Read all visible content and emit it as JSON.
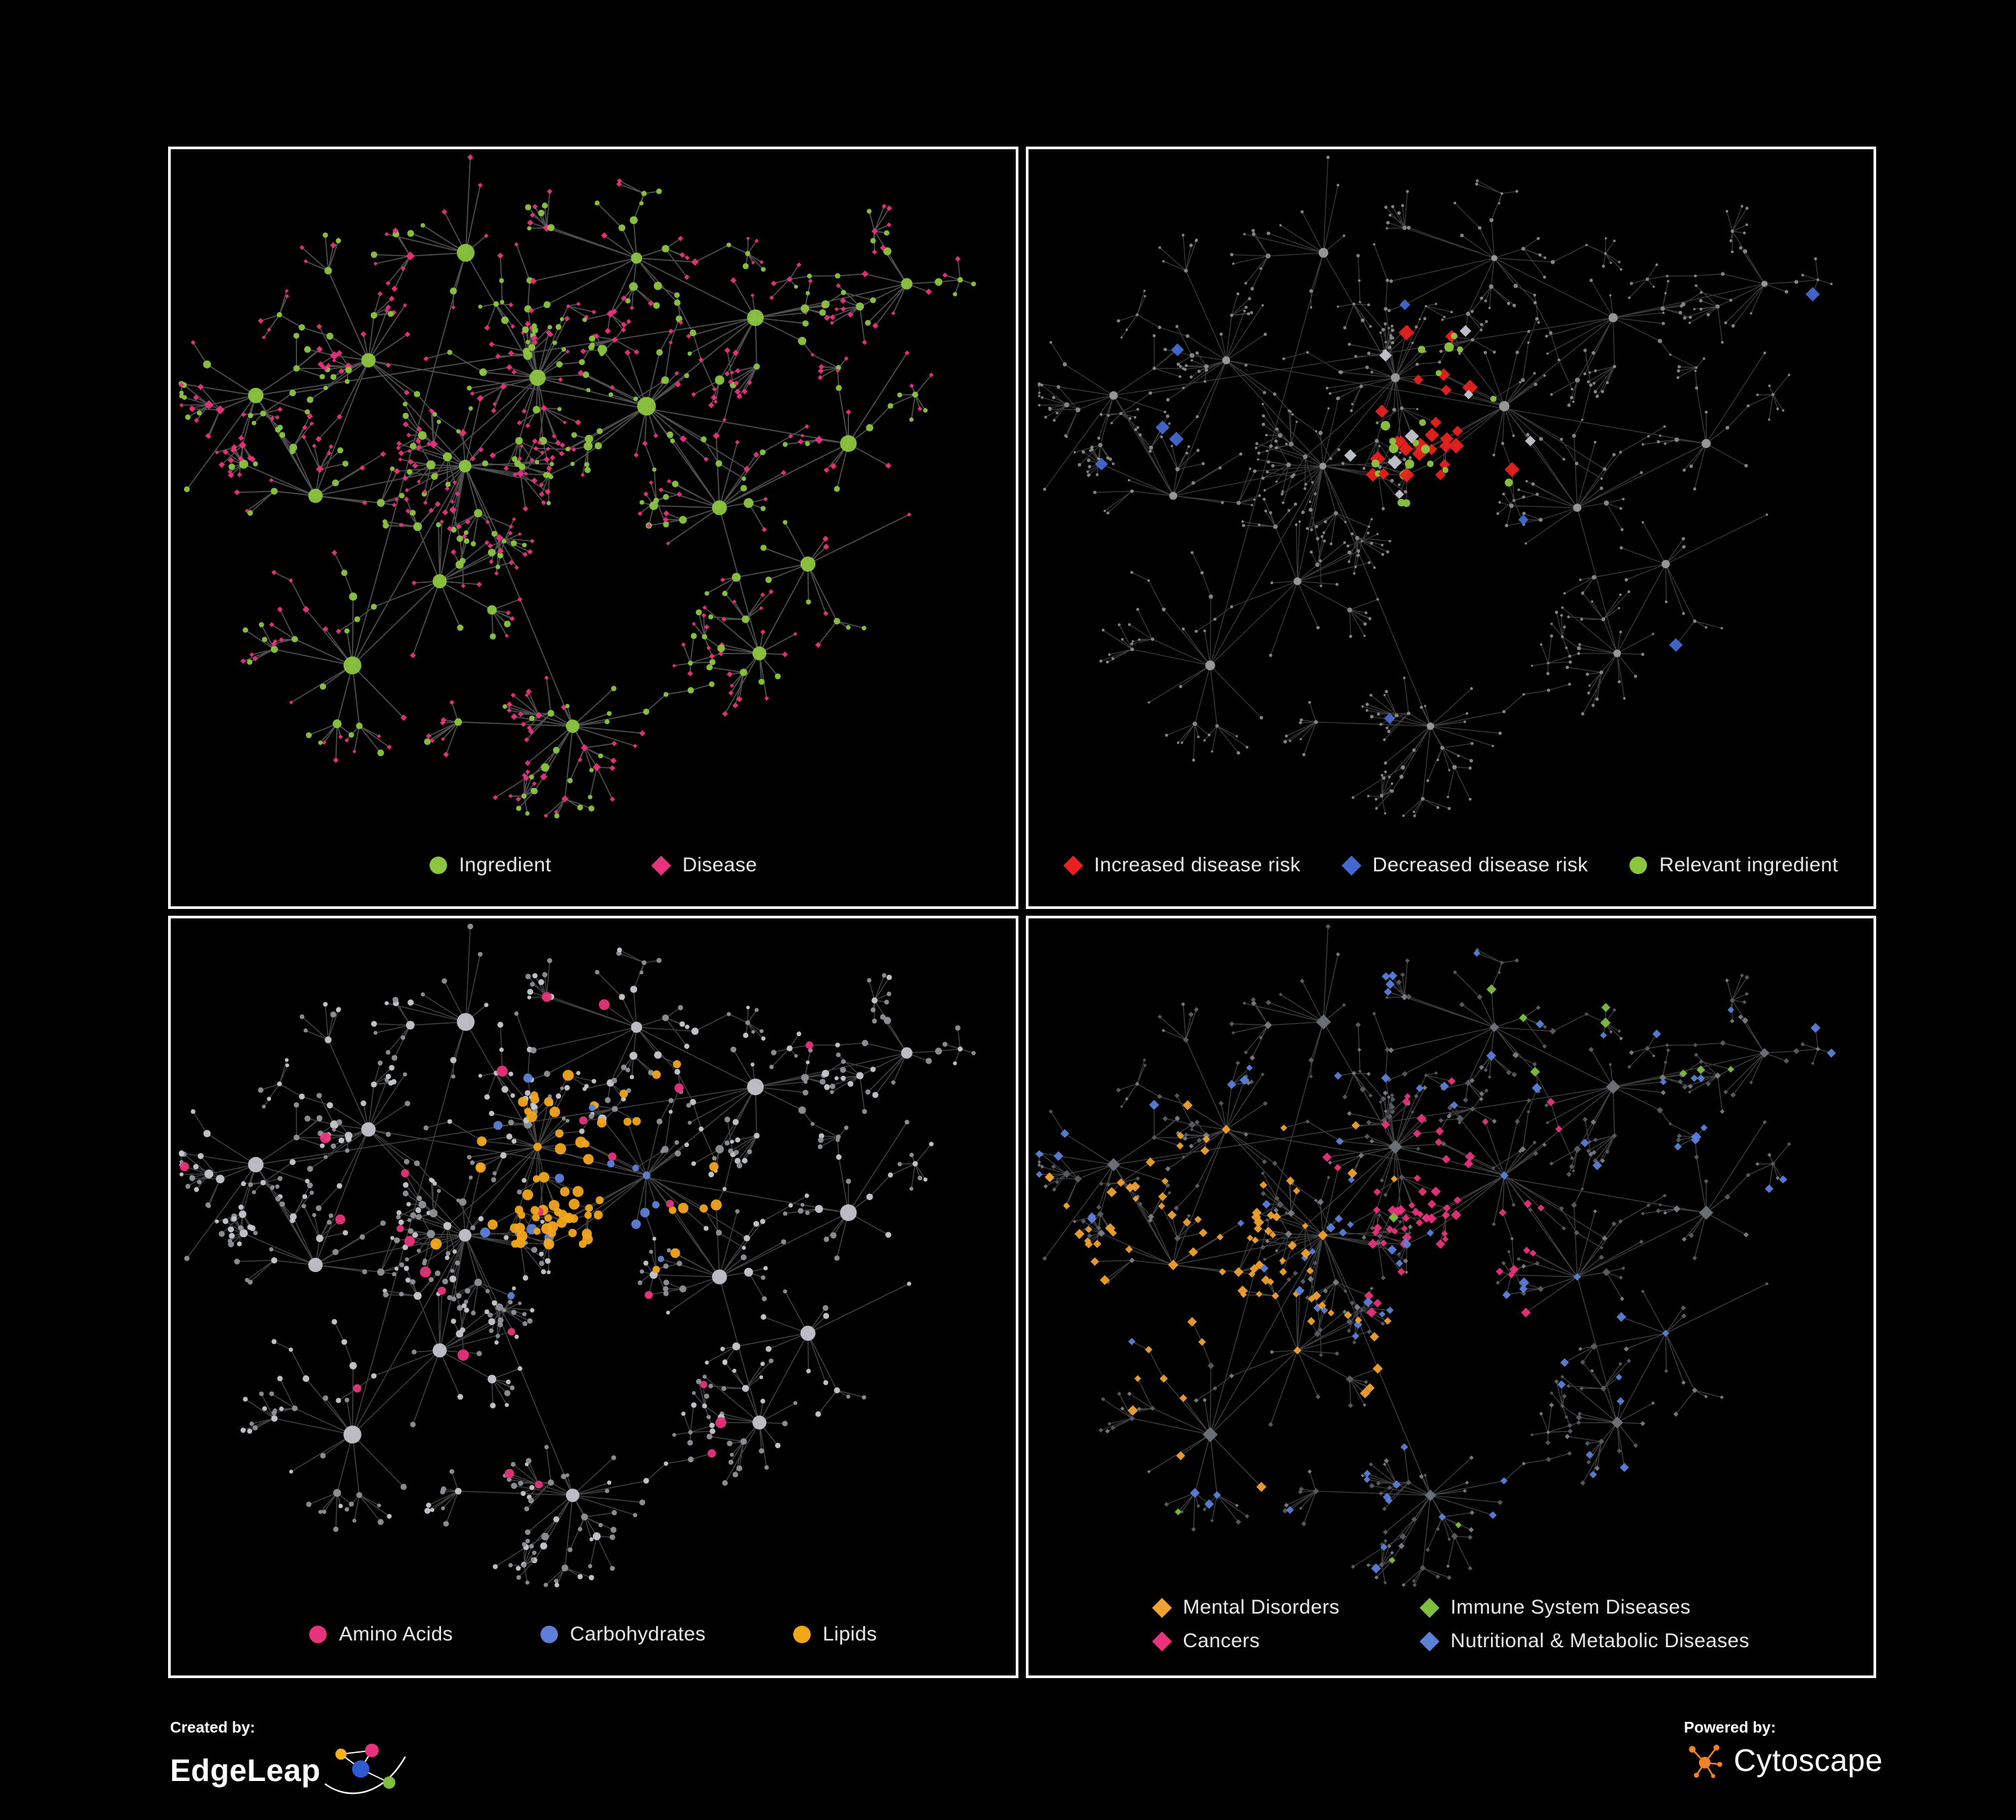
{
  "page": {
    "background": "#000000",
    "panel_border": "#f5f5f5",
    "panel_background": "#000000"
  },
  "panels": [
    {
      "name": "ingredient-disease-network",
      "legend_layout": "row",
      "legend_gap": 150,
      "legend": [
        {
          "label": "Ingredient",
          "shape": "circle",
          "color": "#8CC63E"
        },
        {
          "label": "Disease",
          "shape": "diamond",
          "color": "#E8327C"
        }
      ],
      "network": {
        "seed": 20240601,
        "style_seed": 11,
        "base_scale": 1.0,
        "edge": {
          "color": "#8E8E8E",
          "opacity": 0.55,
          "width": 1.7
        },
        "hub": {
          "shape": "circle",
          "color": "#8CC63E"
        },
        "leaves": [
          {
            "shape": "diamond",
            "color": "#E8327C",
            "weight": 0.66,
            "size_scale": 1.0
          },
          {
            "shape": "circle",
            "color": "#8CC63E",
            "weight": 0.34,
            "size_scale": 1.05
          }
        ],
        "mid_bias": {
          "index": 1,
          "prob": 0.6
        },
        "highlights": []
      }
    },
    {
      "name": "disease-risk-network",
      "legend_layout": "row",
      "legend_gap": 62,
      "legend": [
        {
          "label": "Increased disease risk",
          "shape": "diamond",
          "color": "#E8211D"
        },
        {
          "label": "Decreased disease risk",
          "shape": "diamond",
          "color": "#4468D0"
        },
        {
          "label": "Relevant ingredient",
          "shape": "circle",
          "color": "#8CC63E"
        }
      ],
      "network": {
        "seed": 20240601,
        "style_seed": 22,
        "base_scale": 0.55,
        "edge": {
          "color": "#7A7A7A",
          "opacity": 0.5,
          "width": 1.2
        },
        "hub": {
          "shape": "circle",
          "color": "#9C9C9C"
        },
        "leaves": [
          {
            "shape": "circle",
            "color": "#8A8A8A",
            "weight": 1,
            "size_scale": 1.0
          }
        ],
        "mid_bias": {
          "index": 0,
          "prob": 0
        },
        "highlights": [
          {
            "shape": "diamond",
            "color": "#E8211D",
            "count": 27,
            "bias": "center",
            "size": 9
          },
          {
            "shape": "diamond",
            "color": "#4468D0",
            "count": 9,
            "bias": "spread",
            "size": 9
          },
          {
            "shape": "circle",
            "color": "#8CC63E",
            "count": 22,
            "bias": "center",
            "size": 5.5
          },
          {
            "shape": "diamond",
            "color": "#C3C8CF",
            "count": 8,
            "bias": "center",
            "size": 8.5
          }
        ]
      }
    },
    {
      "name": "macronutrient-network",
      "legend_layout": "row",
      "legend_gap": 130,
      "legend": [
        {
          "label": "Amino Acids",
          "shape": "circle",
          "color": "#E8327C"
        },
        {
          "label": "Carbohydrates",
          "shape": "circle",
          "color": "#5E7FD6"
        },
        {
          "label": "Lipids",
          "shape": "circle",
          "color": "#F2A71B"
        }
      ],
      "network": {
        "seed": 20240601,
        "style_seed": 33,
        "base_scale": 1.0,
        "edge": {
          "color": "#858585",
          "opacity": 0.5,
          "width": 1.4
        },
        "hub": {
          "shape": "circle",
          "color": "#C2C6CC"
        },
        "leaves": [
          {
            "shape": "circle",
            "color": "#8E9399",
            "weight": 0.62,
            "size_scale": 0.95
          },
          {
            "shape": "circle",
            "color": "#C6CAD0",
            "weight": 0.38,
            "size_scale": 0.95
          }
        ],
        "mid_bias": {
          "index": 1,
          "prob": 0.4
        },
        "highlights": [
          {
            "shape": "circle",
            "color": "#F2A71B",
            "count": 70,
            "bias": "center",
            "size": 6.5
          },
          {
            "shape": "circle",
            "color": "#E8327C",
            "count": 26,
            "bias": "spread",
            "size": 6.5
          },
          {
            "shape": "circle",
            "color": "#5E7FD6",
            "count": 15,
            "bias": "center",
            "size": 6
          }
        ]
      }
    },
    {
      "name": "disease-category-network",
      "legend_layout": "grid",
      "legend_gap": 120,
      "legend": [
        {
          "label": "Mental Disorders",
          "shape": "diamond",
          "color": "#F0A12F"
        },
        {
          "label": "Immune System Diseases",
          "shape": "diamond",
          "color": "#7FBF3F"
        },
        {
          "label": "Cancers",
          "shape": "diamond",
          "color": "#E8327C"
        },
        {
          "label": "Nutritional & Metabolic Diseases",
          "shape": "diamond",
          "color": "#5C7FD8"
        }
      ],
      "network": {
        "seed": 20240601,
        "style_seed": 44,
        "base_scale": 0.85,
        "edge": {
          "color": "#7E7E7E",
          "opacity": 0.5,
          "width": 1.3
        },
        "hub": {
          "shape": "diamond",
          "color": "#6E737A"
        },
        "leaves": [
          {
            "shape": "diamond",
            "color": "#585D64",
            "weight": 0.7,
            "size_scale": 1.0
          },
          {
            "shape": "diamond",
            "color": "#7A7F86",
            "weight": 0.3,
            "size_scale": 1.0
          }
        ],
        "mid_bias": {
          "index": 0,
          "prob": 0
        },
        "highlights": [
          {
            "shape": "diamond",
            "color": "#F0A12F",
            "count": 92,
            "bias": "left",
            "size": 6
          },
          {
            "shape": "diamond",
            "color": "#E8327C",
            "count": 62,
            "bias": "center",
            "size": 6
          },
          {
            "shape": "diamond",
            "color": "#5C7FD8",
            "count": 95,
            "bias": "spread",
            "size": 6
          },
          {
            "shape": "diamond",
            "color": "#7FBF3F",
            "count": 12,
            "bias": "spread",
            "size": 6
          }
        ]
      }
    }
  ],
  "footer": {
    "created_by_label": "Created by:",
    "created_by_name": "EdgeLeap",
    "powered_by_label": "Powered by:",
    "powered_by_name": "Cytoscape"
  }
}
